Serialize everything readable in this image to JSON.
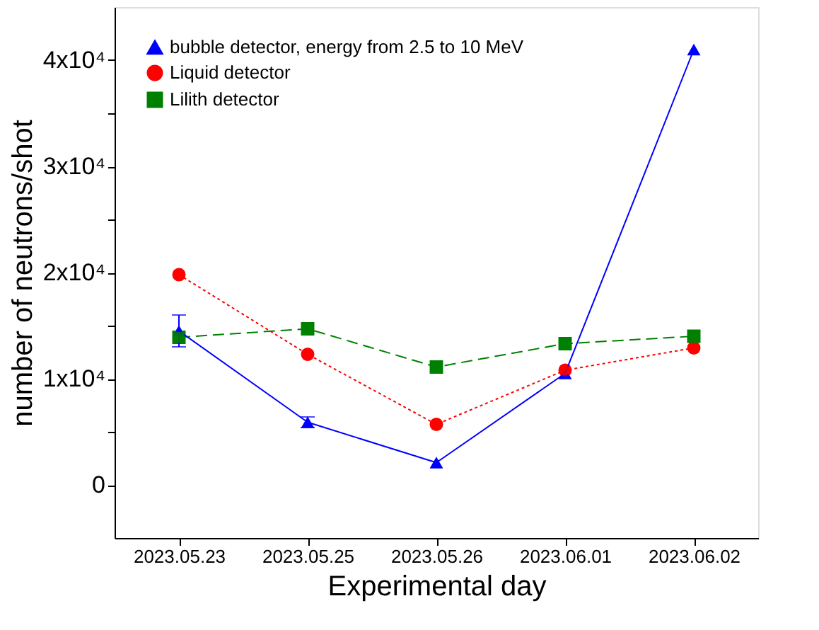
{
  "chart_data": {
    "type": "line",
    "xlabel": "Experimental day",
    "ylabel": "number of neutrons/shot",
    "categories": [
      "2023.05.23",
      "2023.05.25",
      "2023.05.26",
      "2023.06.01",
      "2023.06.02"
    ],
    "series": [
      {
        "name": "bubble detector, energy from 2.5 to 10 MeV",
        "color": "#0000ff",
        "values": [
          14500,
          5900,
          2100,
          10500,
          41000
        ],
        "errors": [
          1500,
          500,
          null,
          null,
          null
        ],
        "marker": "triangle",
        "line_style": "solid"
      },
      {
        "name": "Liquid detector",
        "color": "#ff0000",
        "values": [
          19800,
          12300,
          5700,
          10800,
          12900
        ],
        "marker": "circle",
        "line_style": "dotted"
      },
      {
        "name": "Lilith detector",
        "color": "#008000",
        "values": [
          13900,
          14700,
          11100,
          13300,
          14000
        ],
        "marker": "square",
        "line_style": "dashed"
      }
    ],
    "ylim": [
      -5000,
      45000
    ],
    "yticks": [
      0,
      {
        "value": 5000,
        "label": null
      },
      {
        "value": 10000,
        "label": "1x10⁴"
      },
      {
        "value": 15000,
        "label": null
      },
      {
        "value": 20000,
        "label": "2x10⁴"
      },
      {
        "value": 25000,
        "label": null
      },
      {
        "value": 30000,
        "label": "3x10⁴"
      },
      {
        "value": 35000,
        "label": null
      },
      {
        "value": 40000,
        "label": "4x10⁴"
      }
    ],
    "grid": false,
    "legend": "top left"
  }
}
